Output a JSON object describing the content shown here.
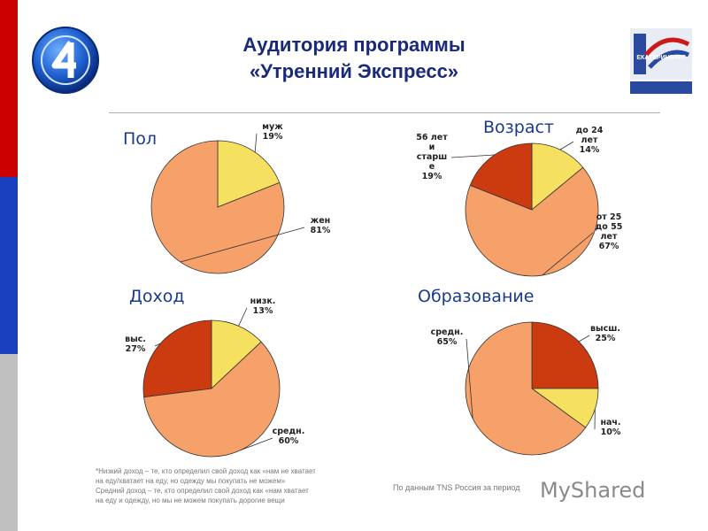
{
  "header": {
    "title_line1": "Аудитория программы",
    "title_line2": "«Утренний Экспресс»",
    "partner_logo_text": "ЕКАТЕРИНБУРГ",
    "channel_logo_icon": "channel-4-logo-icon"
  },
  "sections": {
    "gender": "Пол",
    "age": "Возраст",
    "income": "Доход",
    "education": "Образование"
  },
  "chart_data": [
    {
      "type": "pie",
      "title": "Пол",
      "slices": [
        {
          "label_lines": [
            "муж",
            "19%"
          ],
          "value": 19,
          "color": "#f6e060"
        },
        {
          "label_lines": [
            "жен",
            "81%"
          ],
          "value": 81,
          "color": "#f6a06a"
        }
      ]
    },
    {
      "type": "pie",
      "title": "Возраст",
      "slices": [
        {
          "label_lines": [
            "до 24",
            "лет",
            "14%"
          ],
          "value": 14,
          "color": "#f6e060"
        },
        {
          "label_lines": [
            "от 25",
            "до 55",
            "лет",
            "67%"
          ],
          "value": 67,
          "color": "#f6a06a"
        },
        {
          "label_lines": [
            "56 лет",
            "и",
            "старш",
            "е",
            "19%"
          ],
          "value": 19,
          "color": "#cc3a10"
        }
      ]
    },
    {
      "type": "pie",
      "title": "Доход",
      "slices": [
        {
          "label_lines": [
            "низк.",
            "13%"
          ],
          "value": 13,
          "color": "#f6e060"
        },
        {
          "label_lines": [
            "средн.",
            "60%"
          ],
          "value": 60,
          "color": "#f6a06a"
        },
        {
          "label_lines": [
            "выс.",
            "27%"
          ],
          "value": 27,
          "color": "#cc3a10"
        }
      ]
    },
    {
      "type": "pie",
      "title": "Образование",
      "slices": [
        {
          "label_lines": [
            "высш.",
            "25%"
          ],
          "value": 25,
          "color": "#cc3a10"
        },
        {
          "label_lines": [
            "нач.",
            "10%"
          ],
          "value": 10,
          "color": "#f6e060"
        },
        {
          "label_lines": [
            "средн.",
            "65%"
          ],
          "value": 65,
          "color": "#f6a06a"
        }
      ]
    }
  ],
  "footnote": {
    "line1": "*Низкий доход – те, кто определил свой доход как «нам не хватает",
    "line2": "на еду/хватает на еду, но одежду мы покупать не можем»",
    "line3": "Средний доход – те, кто определил свой доход как «нам хватает",
    "line4": "на еду и одежду, но мы не можем покупать дорогие вещи"
  },
  "source": "По данным TNS Россия за период",
  "watermark": "MyShared"
}
